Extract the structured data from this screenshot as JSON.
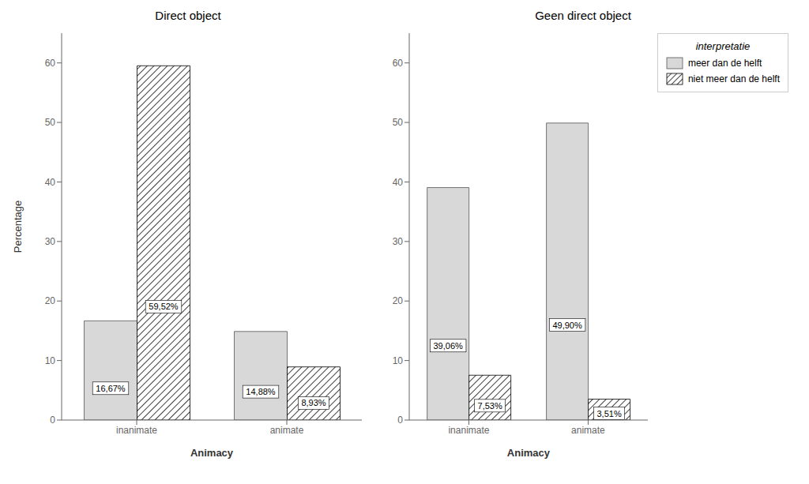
{
  "chart_data": [
    {
      "type": "bar",
      "title": "Direct object",
      "x_label": "Animacy",
      "y_label": "Percentage",
      "categories": [
        "inanimate",
        "animate"
      ],
      "series": [
        {
          "name": "meer dan de helft",
          "color": "#d8d8d8",
          "values": [
            16.67,
            14.88
          ],
          "value_labels": [
            "16,67%",
            "14,88%"
          ]
        },
        {
          "name": "niet meer dan de helft",
          "color": "#000000",
          "values": [
            59.52,
            8.93
          ],
          "value_labels": [
            "59,52%",
            "8,93%"
          ]
        }
      ],
      "ylim": [
        0,
        65
      ],
      "yticks": [
        0,
        10,
        20,
        30,
        40,
        50,
        60
      ],
      "grid": false,
      "data_labels": true
    },
    {
      "type": "bar",
      "title": "Geen direct object",
      "x_label": "Animacy",
      "categories": [
        "inanimate",
        "animate"
      ],
      "series": [
        {
          "name": "meer dan de helft",
          "color": "#d8d8d8",
          "values": [
            39.06,
            49.9
          ],
          "value_labels": [
            "39,06%",
            "49,90%"
          ]
        },
        {
          "name": "niet meer dan de helft",
          "color": "#000000",
          "values": [
            7.53,
            3.51
          ],
          "value_labels": [
            "7,53%",
            "3,51%"
          ]
        }
      ],
      "ylim": [
        0,
        65
      ],
      "yticks": [
        0,
        10,
        20,
        30,
        40,
        50,
        60
      ],
      "grid": false,
      "data_labels": true,
      "legend": "upper right",
      "legend_title": "interpretatie"
    }
  ]
}
